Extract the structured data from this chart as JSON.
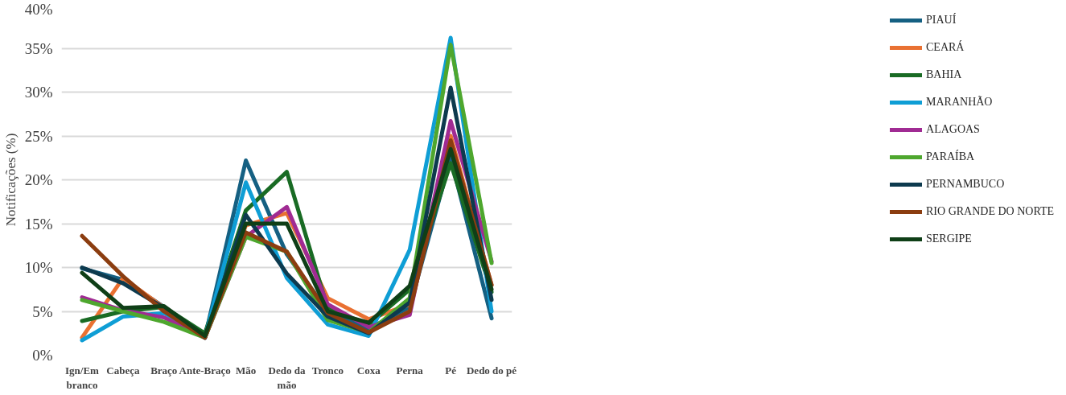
{
  "chart_data": {
    "type": "line",
    "ylabel": "Notificações (%)",
    "categories": [
      "Ign/Em branco",
      "Cabeça",
      "Braço",
      "Ante-Braço",
      "Mão",
      "Dedo da mão",
      "Tronco",
      "Coxa",
      "Perna",
      "Pé",
      "Dedo do pé"
    ],
    "ylim": [
      0,
      40
    ],
    "yticks": [
      {
        "value": 0,
        "label": "0%"
      },
      {
        "value": 5,
        "label": "5%"
      },
      {
        "value": 10,
        "label": "10%"
      },
      {
        "value": 15,
        "label": "15%"
      },
      {
        "value": 20,
        "label": "20%"
      },
      {
        "value": 25,
        "label": "25%"
      },
      {
        "value": 30,
        "label": "30%"
      },
      {
        "value": 35,
        "label": "35%"
      },
      {
        "value": 40,
        "label": "40%"
      }
    ],
    "grid": "y",
    "legend": "right",
    "marker": "none",
    "line_style": "solid",
    "series": [
      {
        "name": "PIAUÍ",
        "color": "#156082",
        "values": [
          9.9,
          8.6,
          5.5,
          2.0,
          22.2,
          11.5,
          5.0,
          3.0,
          5.5,
          22.5,
          4.2
        ]
      },
      {
        "name": "CEARÁ",
        "color": "#e97132",
        "values": [
          2.0,
          8.8,
          5.4,
          2.0,
          14.8,
          16.2,
          6.5,
          4.1,
          5.8,
          25.0,
          8.0
        ]
      },
      {
        "name": "BAHIA",
        "color": "#196b24",
        "values": [
          3.9,
          5.0,
          5.5,
          2.5,
          16.5,
          20.9,
          5.3,
          3.5,
          7.5,
          21.9,
          7.2
        ]
      },
      {
        "name": "MARANHÃO",
        "color": "#0f9ed5",
        "values": [
          1.7,
          4.4,
          4.8,
          2.0,
          19.7,
          8.8,
          3.5,
          2.2,
          12.0,
          36.2,
          5.0
        ]
      },
      {
        "name": "ALAGOAS",
        "color": "#a02b93",
        "values": [
          6.6,
          5.1,
          4.3,
          2.0,
          13.5,
          16.9,
          5.8,
          3.2,
          4.6,
          26.7,
          10.7
        ]
      },
      {
        "name": "PARAÍBA",
        "color": "#4ea72e",
        "values": [
          6.3,
          5.0,
          3.8,
          2.0,
          13.5,
          11.8,
          4.0,
          2.6,
          6.5,
          35.4,
          10.5
        ]
      },
      {
        "name": "PERNAMBUCO",
        "color": "#0d3a4e",
        "values": [
          10.0,
          8.2,
          5.4,
          2.0,
          16.0,
          9.3,
          4.4,
          2.5,
          6.0,
          30.5,
          6.3
        ]
      },
      {
        "name": "RIO GRANDE DO NORTE",
        "color": "#8b3d10",
        "values": [
          13.6,
          9.0,
          5.0,
          2.0,
          14.0,
          11.8,
          4.8,
          2.6,
          5.0,
          24.5,
          8.0
        ]
      },
      {
        "name": "SERGIPE",
        "color": "#0f3f17",
        "values": [
          9.4,
          5.4,
          5.6,
          2.2,
          15.0,
          15.0,
          5.0,
          3.7,
          7.9,
          23.5,
          7.5
        ]
      }
    ]
  }
}
